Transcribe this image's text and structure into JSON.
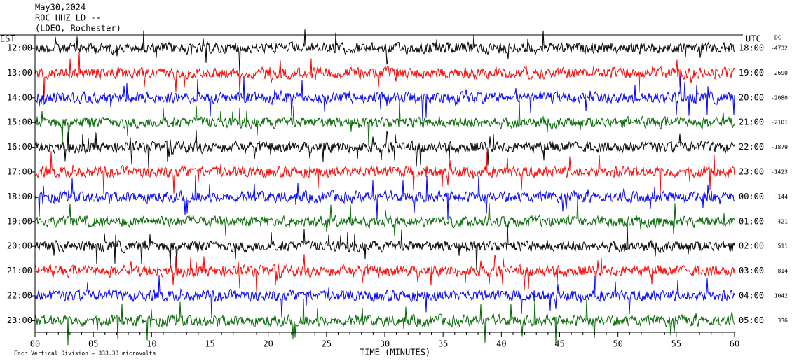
{
  "header": {
    "date": "May30,2024",
    "station": "ROC HHZ LD --",
    "location": "(LDEO, Rochester)"
  },
  "left_axis": {
    "title": "EST",
    "labels": [
      "12:00",
      "13:00",
      "14:00",
      "15:00",
      "16:00",
      "17:00",
      "18:00",
      "19:00",
      "20:00",
      "21:00",
      "22:00",
      "23:00"
    ]
  },
  "right_axis": {
    "title": "UTC",
    "labels": [
      "18:00",
      "19:00",
      "20:00",
      "21:00",
      "22:00",
      "23:00",
      "00:00",
      "01:00",
      "02:00",
      "03:00",
      "04:00",
      "05:00"
    ],
    "dc_title": "DC",
    "dc_values": [
      -4732,
      -2690,
      -2080,
      -2101,
      -1879,
      -1423,
      -144,
      -421,
      511,
      814,
      1042,
      336
    ]
  },
  "x_axis": {
    "title": "TIME (MINUTES)",
    "ticks": [
      "00",
      "05",
      "10",
      "15",
      "20",
      "25",
      "30",
      "35",
      "40",
      "45",
      "50",
      "55",
      "60"
    ]
  },
  "trace_colors": [
    "#000000",
    "#ff0000",
    "#0000ff",
    "#006600"
  ],
  "footer": "Each Vertical Division =  333.33 microvolts"
}
